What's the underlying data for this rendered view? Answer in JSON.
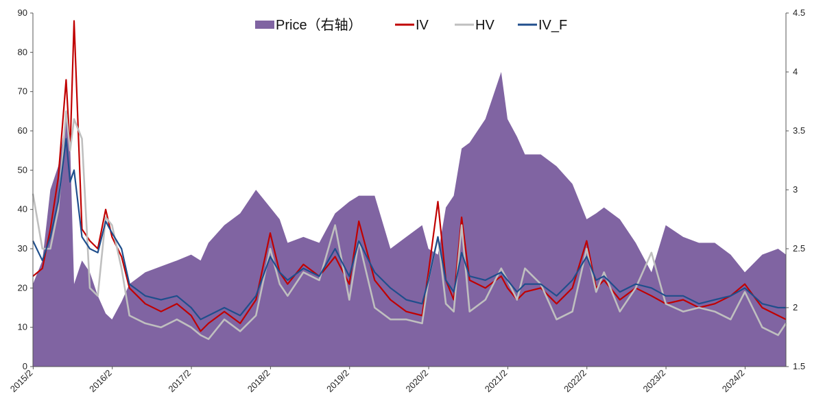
{
  "chart_data": {
    "type": "line",
    "title": "",
    "xlabel": "",
    "ylabel": "",
    "y2label": "",
    "x_tick_labels": [
      "2015/2",
      "2016/2",
      "2017/2",
      "2018/2",
      "2019/2",
      "2020/2",
      "2021/2",
      "2022/2",
      "2023/2",
      "2024/2"
    ],
    "ylim_left": [
      0,
      90
    ],
    "yticks_left": [
      "0",
      "10",
      "20",
      "30",
      "40",
      "50",
      "60",
      "70",
      "80",
      "90"
    ],
    "ylim_right": [
      1.5,
      4.5
    ],
    "yticks_right": [
      "1.5",
      "2",
      "2.5",
      "3",
      "3.5",
      "4",
      "4.5"
    ],
    "legend_position": "top-center",
    "colors": {
      "price": "#8064A2",
      "iv": "#C00000",
      "hv": "#BFBFBF",
      "iv_f": "#1F4E8C"
    },
    "x": [
      2015.08,
      2015.2,
      2015.3,
      2015.4,
      2015.5,
      2015.55,
      2015.6,
      2015.7,
      2015.8,
      2015.9,
      2016.0,
      2016.08,
      2016.2,
      2016.3,
      2016.5,
      2016.7,
      2016.9,
      2017.08,
      2017.2,
      2017.3,
      2017.5,
      2017.7,
      2017.9,
      2018.08,
      2018.2,
      2018.3,
      2018.5,
      2018.7,
      2018.9,
      2019.08,
      2019.2,
      2019.4,
      2019.6,
      2019.8,
      2020.0,
      2020.08,
      2020.2,
      2020.3,
      2020.4,
      2020.5,
      2020.6,
      2020.8,
      2021.0,
      2021.08,
      2021.2,
      2021.3,
      2021.5,
      2021.7,
      2021.9,
      2022.08,
      2022.2,
      2022.3,
      2022.5,
      2022.7,
      2022.9,
      2023.08,
      2023.3,
      2023.5,
      2023.7,
      2023.9,
      2024.08,
      2024.3,
      2024.5,
      2024.6
    ],
    "series": [
      {
        "name": "Price（右轴）",
        "axis": "right",
        "kind": "area",
        "values": [
          2.2,
          2.4,
          3.0,
          3.2,
          3.6,
          3.4,
          2.2,
          2.4,
          2.3,
          2.1,
          1.95,
          1.9,
          2.05,
          2.2,
          2.3,
          2.35,
          2.4,
          2.45,
          2.4,
          2.55,
          2.7,
          2.8,
          3.0,
          2.85,
          2.75,
          2.55,
          2.6,
          2.55,
          2.8,
          2.9,
          2.95,
          2.95,
          2.5,
          2.6,
          2.7,
          2.5,
          2.45,
          2.85,
          2.95,
          3.35,
          3.4,
          3.6,
          4.0,
          3.6,
          3.45,
          3.3,
          3.3,
          3.2,
          3.05,
          2.75,
          2.8,
          2.85,
          2.75,
          2.55,
          2.3,
          2.7,
          2.6,
          2.55,
          2.55,
          2.45,
          2.3,
          2.45,
          2.5,
          2.45
        ]
      },
      {
        "name": "IV",
        "axis": "left",
        "kind": "line",
        "values": [
          23,
          25,
          35,
          48,
          73,
          55,
          88,
          35,
          32,
          30,
          40,
          33,
          28,
          20,
          16,
          14,
          16,
          13,
          9,
          11,
          14,
          11,
          17,
          34,
          24,
          21,
          26,
          23,
          28,
          21,
          37,
          22,
          17,
          14,
          13,
          24,
          42,
          22,
          17,
          38,
          22,
          20,
          23,
          20,
          17,
          19,
          20,
          16,
          20,
          32,
          20,
          22,
          17,
          20,
          18,
          16,
          17,
          15,
          16,
          18,
          21,
          15,
          13,
          12
        ]
      },
      {
        "name": "HV",
        "axis": "left",
        "kind": "line",
        "values": [
          44,
          30,
          30,
          40,
          65,
          55,
          63,
          58,
          20,
          18,
          38,
          36,
          25,
          13,
          11,
          10,
          12,
          10,
          8,
          7,
          12,
          9,
          13,
          30,
          21,
          18,
          24,
          22,
          36,
          17,
          32,
          15,
          12,
          12,
          11,
          22,
          33,
          16,
          14,
          36,
          14,
          17,
          25,
          22,
          17,
          25,
          21,
          12,
          14,
          30,
          19,
          24,
          14,
          20,
          29,
          16,
          14,
          15,
          14,
          12,
          19,
          10,
          8,
          11
        ]
      },
      {
        "name": "IV_F",
        "axis": "left",
        "kind": "line",
        "values": [
          32,
          27,
          33,
          42,
          58,
          47,
          50,
          33,
          30,
          29,
          37,
          34,
          30,
          21,
          18,
          17,
          18,
          15,
          12,
          13,
          15,
          13,
          18,
          28,
          24,
          22,
          25,
          23,
          30,
          23,
          32,
          24,
          20,
          17,
          16,
          22,
          33,
          22,
          19,
          29,
          23,
          22,
          24,
          22,
          19,
          21,
          21,
          18,
          22,
          28,
          22,
          23,
          19,
          21,
          20,
          18,
          18,
          16,
          17,
          18,
          20,
          16,
          15,
          15
        ]
      }
    ]
  }
}
